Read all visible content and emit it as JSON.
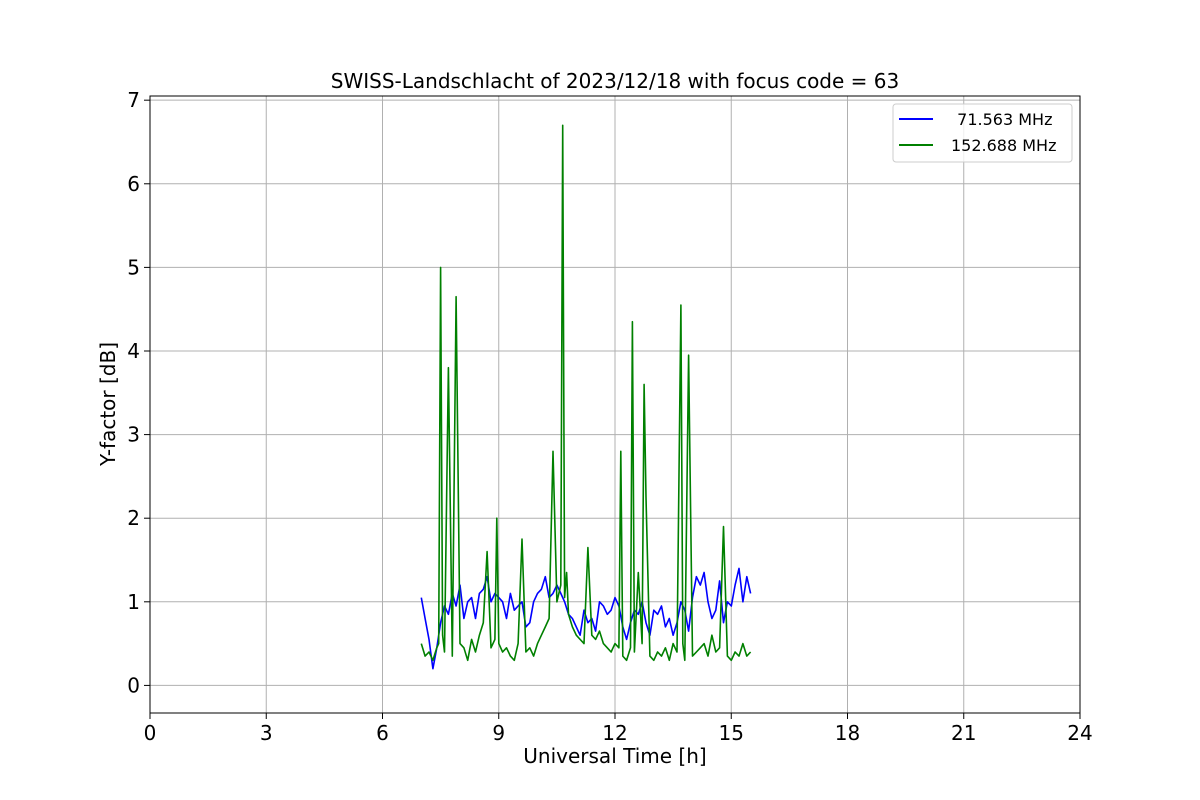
{
  "chart_data": {
    "type": "line",
    "title": "SWISS-Landschlacht of 2023/12/18 with focus code = 63",
    "xlabel": "Universal Time [h]",
    "ylabel": "Y-factor [dB]",
    "xlim": [
      0,
      24
    ],
    "ylim": [
      -0.33,
      7.05
    ],
    "xticks": [
      0,
      3,
      6,
      9,
      12,
      15,
      18,
      21,
      24
    ],
    "yticks": [
      0,
      1,
      2,
      3,
      4,
      5,
      6,
      7
    ],
    "grid": true,
    "legend_position": "top-right",
    "series": [
      {
        "name": "  71.563 MHz",
        "color": "#0000ff",
        "x": [
          7.0,
          7.1,
          7.2,
          7.3,
          7.4,
          7.5,
          7.6,
          7.7,
          7.8,
          7.9,
          8.0,
          8.1,
          8.2,
          8.3,
          8.4,
          8.5,
          8.6,
          8.7,
          8.8,
          8.9,
          9.0,
          9.1,
          9.2,
          9.3,
          9.4,
          9.5,
          9.6,
          9.7,
          9.8,
          9.9,
          10.0,
          10.1,
          10.2,
          10.3,
          10.4,
          10.5,
          10.6,
          10.7,
          10.8,
          10.9,
          11.0,
          11.1,
          11.2,
          11.3,
          11.4,
          11.5,
          11.6,
          11.7,
          11.8,
          11.9,
          12.0,
          12.1,
          12.2,
          12.3,
          12.4,
          12.5,
          12.6,
          12.7,
          12.8,
          12.9,
          13.0,
          13.1,
          13.2,
          13.3,
          13.4,
          13.5,
          13.6,
          13.7,
          13.8,
          13.9,
          14.0,
          14.1,
          14.2,
          14.3,
          14.4,
          14.5,
          14.6,
          14.7,
          14.8,
          14.9,
          15.0,
          15.1,
          15.2,
          15.3,
          15.4,
          15.5
        ],
        "y": [
          1.05,
          0.8,
          0.55,
          0.2,
          0.45,
          0.75,
          0.95,
          0.85,
          1.1,
          0.95,
          1.2,
          0.8,
          1.0,
          1.05,
          0.8,
          1.1,
          1.15,
          1.3,
          1.0,
          1.1,
          1.05,
          1.0,
          0.8,
          1.1,
          0.9,
          0.95,
          1.0,
          0.7,
          0.75,
          1.0,
          1.1,
          1.15,
          1.3,
          1.05,
          1.1,
          1.2,
          1.1,
          1.0,
          0.85,
          0.8,
          0.7,
          0.6,
          0.9,
          0.75,
          0.8,
          0.65,
          1.0,
          0.95,
          0.85,
          0.9,
          1.05,
          0.95,
          0.7,
          0.55,
          0.75,
          0.9,
          0.85,
          1.0,
          0.75,
          0.6,
          0.9,
          0.85,
          0.95,
          0.7,
          0.8,
          0.6,
          0.75,
          1.0,
          0.9,
          0.65,
          1.05,
          1.3,
          1.2,
          1.35,
          1.0,
          0.8,
          0.9,
          1.25,
          0.75,
          1.0,
          0.95,
          1.2,
          1.4,
          1.0,
          1.3,
          1.1
        ]
      },
      {
        "name": "152.688 MHz",
        "color": "#008000",
        "x": [
          7.0,
          7.1,
          7.2,
          7.3,
          7.4,
          7.45,
          7.5,
          7.55,
          7.6,
          7.7,
          7.8,
          7.9,
          8.0,
          8.1,
          8.2,
          8.3,
          8.4,
          8.5,
          8.6,
          8.7,
          8.8,
          8.9,
          8.95,
          9.0,
          9.1,
          9.2,
          9.3,
          9.4,
          9.5,
          9.6,
          9.7,
          9.8,
          9.9,
          10.0,
          10.1,
          10.2,
          10.3,
          10.4,
          10.5,
          10.6,
          10.65,
          10.7,
          10.75,
          10.8,
          10.9,
          11.0,
          11.1,
          11.2,
          11.3,
          11.4,
          11.5,
          11.6,
          11.7,
          11.8,
          11.9,
          12.0,
          12.1,
          12.15,
          12.2,
          12.3,
          12.4,
          12.45,
          12.5,
          12.6,
          12.7,
          12.75,
          12.8,
          12.9,
          13.0,
          13.1,
          13.2,
          13.3,
          13.4,
          13.5,
          13.6,
          13.7,
          13.75,
          13.8,
          13.9,
          14.0,
          14.1,
          14.2,
          14.3,
          14.4,
          14.5,
          14.6,
          14.7,
          14.8,
          14.9,
          15.0,
          15.1,
          15.2,
          15.3,
          15.4,
          15.5
        ],
        "y": [
          0.5,
          0.35,
          0.4,
          0.3,
          0.45,
          0.5,
          5.0,
          0.6,
          0.4,
          3.8,
          0.35,
          4.65,
          0.5,
          0.45,
          0.3,
          0.55,
          0.4,
          0.6,
          0.75,
          1.6,
          0.45,
          0.55,
          2.0,
          0.5,
          0.4,
          0.45,
          0.35,
          0.3,
          0.5,
          1.75,
          0.4,
          0.45,
          0.35,
          0.5,
          0.6,
          0.7,
          0.8,
          2.8,
          1.0,
          1.2,
          6.7,
          1.05,
          1.35,
          0.85,
          0.7,
          0.6,
          0.55,
          0.5,
          1.65,
          0.6,
          0.55,
          0.65,
          0.5,
          0.45,
          0.4,
          0.5,
          0.45,
          2.8,
          0.35,
          0.3,
          0.45,
          4.35,
          0.4,
          1.35,
          0.5,
          3.6,
          2.25,
          0.35,
          0.3,
          0.4,
          0.35,
          0.45,
          0.3,
          0.5,
          0.4,
          4.55,
          0.5,
          0.3,
          3.95,
          0.35,
          0.4,
          0.45,
          0.5,
          0.35,
          0.6,
          0.4,
          0.45,
          1.9,
          0.35,
          0.3,
          0.4,
          0.35,
          0.5,
          0.35,
          0.4
        ]
      }
    ]
  }
}
